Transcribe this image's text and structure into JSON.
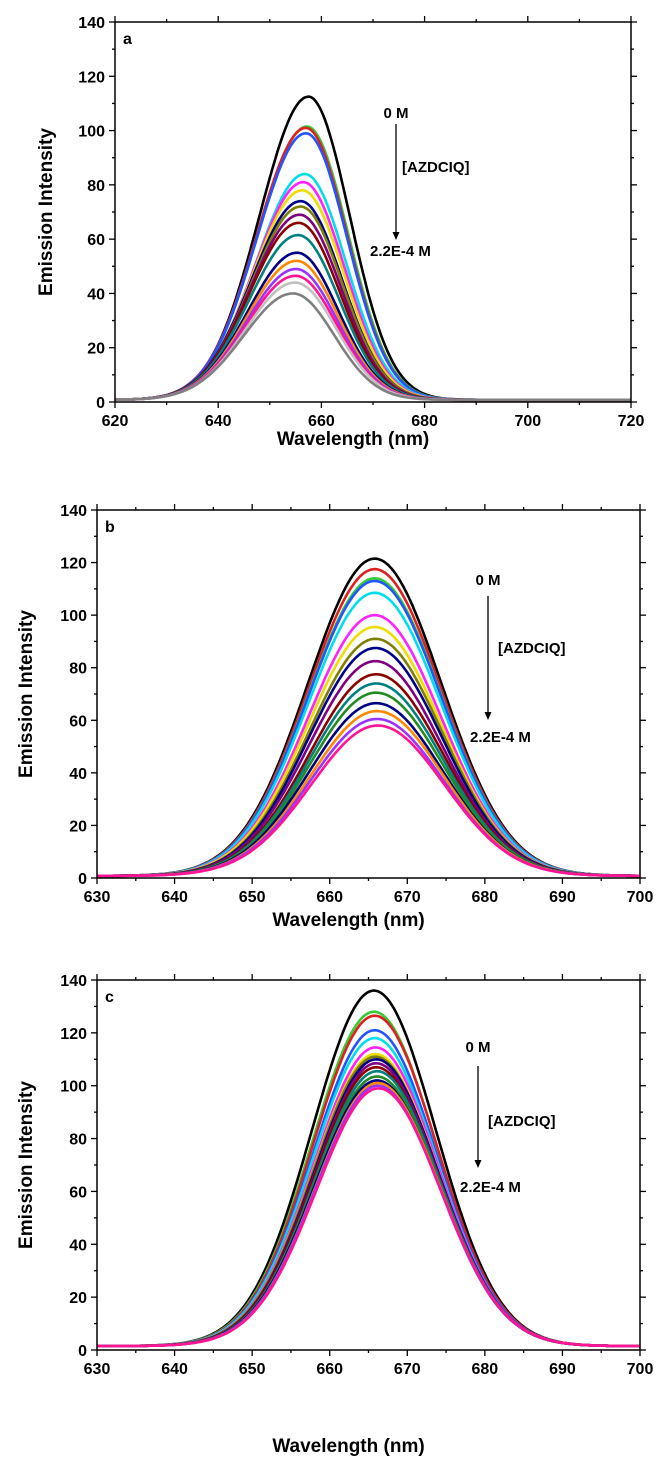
{
  "chart_data": [
    {
      "type": "line",
      "panel_label": "a",
      "xlabel": "Wavelength (nm)",
      "ylabel": "Emission Intensity",
      "xlim": [
        620,
        720
      ],
      "ylim": [
        0,
        140
      ],
      "xticks": [
        620,
        640,
        660,
        680,
        700,
        720
      ],
      "yticks": [
        0,
        20,
        40,
        60,
        80,
        100,
        120,
        140
      ],
      "legend": null,
      "annotations": {
        "start": "0 M",
        "quencher": "[AZDCIQ]",
        "end": "2.2E-4 M"
      },
      "series": [
        {
          "color": "#000000",
          "values": {
            "peak_wavelength": 657.5,
            "peak_intensity": 112.5
          }
        },
        {
          "color": "#33cc33",
          "values": {
            "peak_wavelength": 657.2,
            "peak_intensity": 101.5
          }
        },
        {
          "color": "#e02020",
          "values": {
            "peak_wavelength": 657.0,
            "peak_intensity": 101
          }
        },
        {
          "color": "#2255ff",
          "values": {
            "peak_wavelength": 657.0,
            "peak_intensity": 99
          }
        },
        {
          "color": "#00ddee",
          "values": {
            "peak_wavelength": 656.8,
            "peak_intensity": 84
          }
        },
        {
          "color": "#ff22ff",
          "values": {
            "peak_wavelength": 656.5,
            "peak_intensity": 81
          }
        },
        {
          "color": "#eedd00",
          "values": {
            "peak_wavelength": 656.3,
            "peak_intensity": 78
          }
        },
        {
          "color": "#00008b",
          "values": {
            "peak_wavelength": 656.0,
            "peak_intensity": 74
          }
        },
        {
          "color": "#808000",
          "values": {
            "peak_wavelength": 656.0,
            "peak_intensity": 72
          }
        },
        {
          "color": "#800080",
          "values": {
            "peak_wavelength": 655.8,
            "peak_intensity": 69
          }
        },
        {
          "color": "#8b0000",
          "values": {
            "peak_wavelength": 655.6,
            "peak_intensity": 66
          }
        },
        {
          "color": "#008080",
          "values": {
            "peak_wavelength": 655.5,
            "peak_intensity": 61.5
          }
        },
        {
          "color": "#000080",
          "values": {
            "peak_wavelength": 655.3,
            "peak_intensity": 55
          }
        },
        {
          "color": "#ff8800",
          "values": {
            "peak_wavelength": 655.2,
            "peak_intensity": 52
          }
        },
        {
          "color": "#9933ff",
          "values": {
            "peak_wavelength": 655.1,
            "peak_intensity": 49
          }
        },
        {
          "color": "#ff1493",
          "values": {
            "peak_wavelength": 655.0,
            "peak_intensity": 46.5
          }
        },
        {
          "color": "#c0c0c0",
          "values": {
            "peak_wavelength": 654.9,
            "peak_intensity": 44
          }
        },
        {
          "color": "#808080",
          "values": {
            "peak_wavelength": 654.5,
            "peak_intensity": 40
          }
        }
      ]
    },
    {
      "type": "line",
      "panel_label": "b",
      "xlabel": "Wavelength (nm)",
      "ylabel": "Emission Intensity",
      "xlim": [
        630,
        700
      ],
      "ylim": [
        0,
        140
      ],
      "xticks": [
        630,
        640,
        650,
        660,
        670,
        680,
        690,
        700
      ],
      "yticks": [
        0,
        20,
        40,
        60,
        80,
        100,
        120,
        140
      ],
      "legend": null,
      "annotations": {
        "start": "0 M",
        "quencher": "[AZDCIQ]",
        "end": "2.2E-4 M"
      },
      "series": [
        {
          "color": "#000000",
          "values": {
            "peak_wavelength": 665.8,
            "peak_intensity": 121.5
          }
        },
        {
          "color": "#e02020",
          "values": {
            "peak_wavelength": 665.8,
            "peak_intensity": 117.5
          }
        },
        {
          "color": "#33cc33",
          "values": {
            "peak_wavelength": 665.8,
            "peak_intensity": 114
          }
        },
        {
          "color": "#2255ff",
          "values": {
            "peak_wavelength": 665.8,
            "peak_intensity": 113
          }
        },
        {
          "color": "#00ddee",
          "values": {
            "peak_wavelength": 665.8,
            "peak_intensity": 108.5
          }
        },
        {
          "color": "#ff22ff",
          "values": {
            "peak_wavelength": 665.8,
            "peak_intensity": 100
          }
        },
        {
          "color": "#eedd00",
          "values": {
            "peak_wavelength": 665.8,
            "peak_intensity": 95.5
          }
        },
        {
          "color": "#808000",
          "values": {
            "peak_wavelength": 665.9,
            "peak_intensity": 91
          }
        },
        {
          "color": "#00008b",
          "values": {
            "peak_wavelength": 665.9,
            "peak_intensity": 87.5
          }
        },
        {
          "color": "#800080",
          "values": {
            "peak_wavelength": 665.9,
            "peak_intensity": 82.5
          }
        },
        {
          "color": "#8b0000",
          "values": {
            "peak_wavelength": 666.0,
            "peak_intensity": 77.5
          }
        },
        {
          "color": "#008080",
          "values": {
            "peak_wavelength": 666.0,
            "peak_intensity": 74
          }
        },
        {
          "color": "#228b22",
          "values": {
            "peak_wavelength": 666.0,
            "peak_intensity": 70.5
          }
        },
        {
          "color": "#000080",
          "values": {
            "peak_wavelength": 666.0,
            "peak_intensity": 66.5
          }
        },
        {
          "color": "#ff8800",
          "values": {
            "peak_wavelength": 666.1,
            "peak_intensity": 63.5
          }
        },
        {
          "color": "#9933ff",
          "values": {
            "peak_wavelength": 666.1,
            "peak_intensity": 60.5
          }
        },
        {
          "color": "#ff1493",
          "values": {
            "peak_wavelength": 666.2,
            "peak_intensity": 58
          }
        }
      ]
    },
    {
      "type": "line",
      "panel_label": "c",
      "xlabel": "Wavelength (nm)",
      "ylabel": "Emission Intensity",
      "xlim": [
        630,
        700
      ],
      "ylim": [
        0,
        140
      ],
      "xticks": [
        630,
        640,
        650,
        660,
        670,
        680,
        690,
        700
      ],
      "yticks": [
        0,
        20,
        40,
        60,
        80,
        100,
        120,
        140
      ],
      "legend": null,
      "annotations": {
        "start": "0 M",
        "quencher": "[AZDCIQ]",
        "end": "2.2E-4 M"
      },
      "series": [
        {
          "color": "#000000",
          "values": {
            "peak_wavelength": 665.7,
            "peak_intensity": 136
          }
        },
        {
          "color": "#33cc33",
          "values": {
            "peak_wavelength": 665.7,
            "peak_intensity": 128
          }
        },
        {
          "color": "#e02020",
          "values": {
            "peak_wavelength": 665.8,
            "peak_intensity": 126.5
          }
        },
        {
          "color": "#2255ff",
          "values": {
            "peak_wavelength": 665.8,
            "peak_intensity": 121
          }
        },
        {
          "color": "#00ddee",
          "values": {
            "peak_wavelength": 665.8,
            "peak_intensity": 118
          }
        },
        {
          "color": "#ff22ff",
          "values": {
            "peak_wavelength": 665.9,
            "peak_intensity": 114.5
          }
        },
        {
          "color": "#eedd00",
          "values": {
            "peak_wavelength": 665.9,
            "peak_intensity": 112
          }
        },
        {
          "color": "#808000",
          "values": {
            "peak_wavelength": 665.9,
            "peak_intensity": 111
          }
        },
        {
          "color": "#00008b",
          "values": {
            "peak_wavelength": 666.0,
            "peak_intensity": 110
          }
        },
        {
          "color": "#800080",
          "values": {
            "peak_wavelength": 666.0,
            "peak_intensity": 108.5
          }
        },
        {
          "color": "#8b0000",
          "values": {
            "peak_wavelength": 666.0,
            "peak_intensity": 107
          }
        },
        {
          "color": "#008080",
          "values": {
            "peak_wavelength": 666.1,
            "peak_intensity": 105.5
          }
        },
        {
          "color": "#228b22",
          "values": {
            "peak_wavelength": 666.1,
            "peak_intensity": 103.5
          }
        },
        {
          "color": "#000080",
          "values": {
            "peak_wavelength": 666.1,
            "peak_intensity": 102
          }
        },
        {
          "color": "#ff8800",
          "values": {
            "peak_wavelength": 666.2,
            "peak_intensity": 101
          }
        },
        {
          "color": "#9933ff",
          "values": {
            "peak_wavelength": 666.2,
            "peak_intensity": 100
          }
        },
        {
          "color": "#ff1493",
          "values": {
            "peak_wavelength": 666.3,
            "peak_intensity": 99
          }
        }
      ]
    }
  ]
}
